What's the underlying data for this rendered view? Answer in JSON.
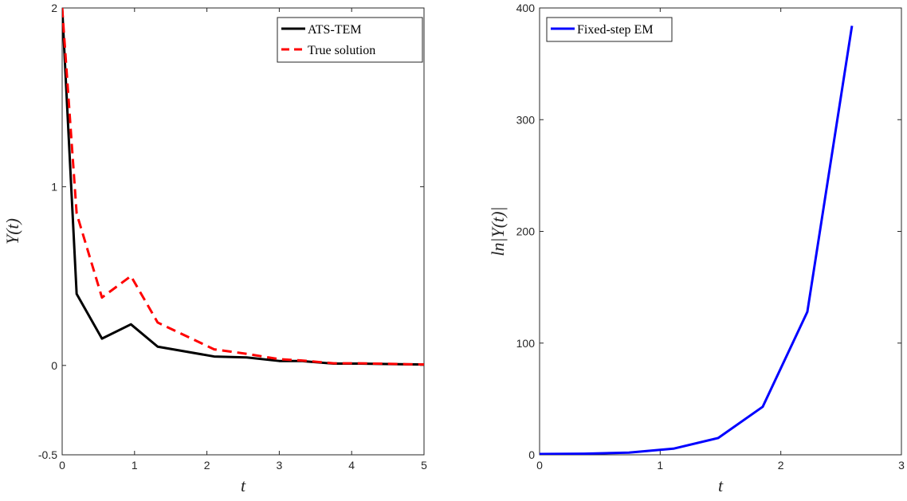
{
  "chart_data": [
    {
      "type": "line",
      "xlabel": "t",
      "ylabel": "Y(t)",
      "xlim": [
        0,
        5
      ],
      "ylim": [
        -0.5,
        2
      ],
      "xticks": [
        "0",
        "1",
        "2",
        "3",
        "4",
        "5"
      ],
      "yticks": [
        "-0.5",
        "0",
        "1",
        "2"
      ],
      "grid": false,
      "legend_position": "top-right",
      "series": [
        {
          "name": "ATS-TEM",
          "color": "#000000",
          "dash": "solid",
          "x": [
            0,
            0.2,
            0.55,
            0.95,
            1.32,
            2.1,
            2.55,
            3.0,
            3.3,
            3.75,
            4.1,
            5.0
          ],
          "y": [
            2.0,
            0.4,
            0.15,
            0.23,
            0.105,
            0.05,
            0.045,
            0.025,
            0.025,
            0.01,
            0.01,
            0.005
          ]
        },
        {
          "name": "True solution",
          "color": "#ff0000",
          "dash": "dashed",
          "x": [
            0,
            0.2,
            0.55,
            0.95,
            1.32,
            2.1,
            2.55,
            3.0,
            3.3,
            3.75,
            4.1,
            5.0
          ],
          "y": [
            2.0,
            0.85,
            0.38,
            0.5,
            0.24,
            0.09,
            0.065,
            0.035,
            0.028,
            0.012,
            0.012,
            0.005
          ]
        }
      ]
    },
    {
      "type": "line",
      "xlabel": "t",
      "ylabel": "ln|Y(t)|",
      "xlim": [
        0,
        3
      ],
      "ylim": [
        0,
        400
      ],
      "xticks": [
        "0",
        "1",
        "2",
        "3"
      ],
      "yticks": [
        "0",
        "100",
        "200",
        "300",
        "400"
      ],
      "grid": false,
      "legend_position": "top-left",
      "series": [
        {
          "name": "Fixed-step EM",
          "color": "#0000ff",
          "dash": "solid",
          "x": [
            0,
            0.37,
            0.74,
            1.11,
            1.48,
            1.85,
            2.22,
            2.59
          ],
          "y": [
            0.7,
            1.0,
            2.0,
            5.5,
            15,
            43,
            128,
            384
          ]
        }
      ]
    }
  ]
}
